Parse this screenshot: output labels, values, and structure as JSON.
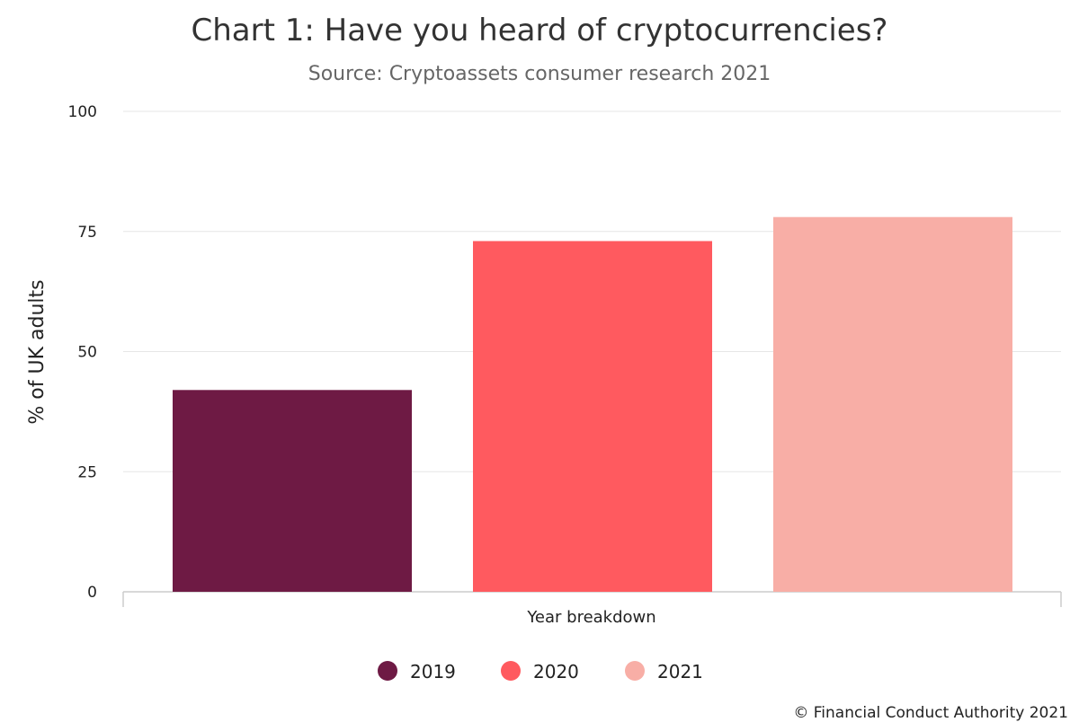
{
  "chart_data": {
    "type": "bar",
    "title": "Chart 1: Have you heard of cryptocurrencies?",
    "subtitle": "Source: Cryptoassets consumer research 2021",
    "xlabel": "Year breakdown",
    "ylabel": "% of UK adults",
    "ylim": [
      0,
      100
    ],
    "yticks": [
      "0",
      "25",
      "50",
      "75",
      "100"
    ],
    "grid": true,
    "legend_position": "bottom-center",
    "series": [
      {
        "name": "2019",
        "values": [
          42
        ],
        "color": "#6e1a44"
      },
      {
        "name": "2020",
        "values": [
          73
        ],
        "color": "#ff5a5f"
      },
      {
        "name": "2021",
        "values": [
          78
        ],
        "color": "#f8aea6"
      }
    ]
  },
  "footer": {
    "copyright": "© Financial Conduct Authority 2021"
  }
}
